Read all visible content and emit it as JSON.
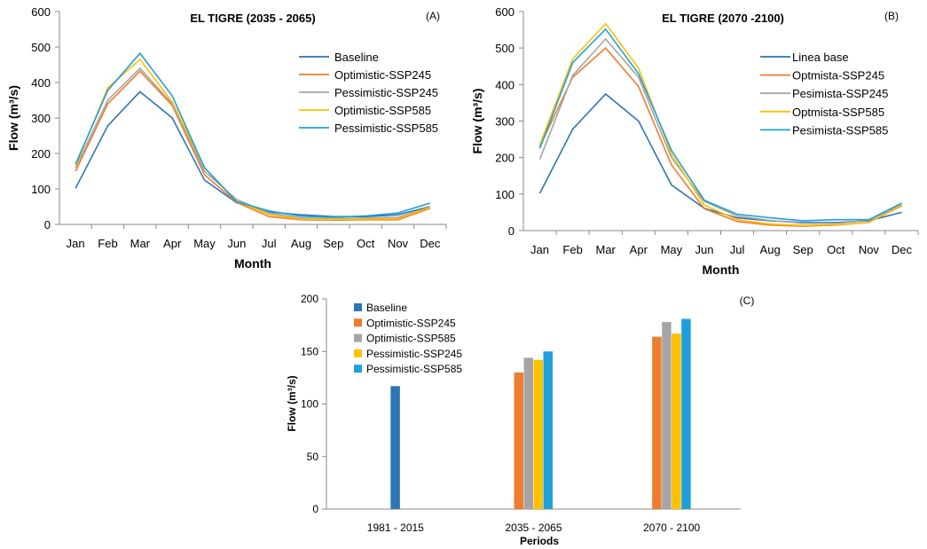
{
  "chart_data": [
    {
      "type": "line",
      "panel_label": "(A)",
      "title": "EL TIGRE  (2035 - 2065)",
      "xlabel": "Month",
      "ylabel": "Flow (m³/s)",
      "ylim": [
        0,
        600
      ],
      "yticks": [
        "0",
        "100",
        "200",
        "300",
        "400",
        "500",
        "600"
      ],
      "categories": [
        "Jan",
        "Feb",
        "Mar",
        "Apr",
        "May",
        "Jun",
        "Jul",
        "Aug",
        "Sep",
        "Oct",
        "Nov",
        "Dec"
      ],
      "legend_position": "top-right",
      "series": [
        {
          "name": "Baseline",
          "color": "#2e75b6",
          "values": [
            102,
            278,
            374,
            300,
            125,
            61,
            35,
            27,
            22,
            22,
            27,
            50
          ]
        },
        {
          "name": "Optimistic-SSP245",
          "color": "#ed7d31",
          "values": [
            150,
            340,
            432,
            335,
            140,
            62,
            22,
            13,
            12,
            13,
            13,
            45
          ]
        },
        {
          "name": "Pessimistic-SSP245",
          "color": "#a5a5a5",
          "values": [
            160,
            350,
            440,
            340,
            150,
            70,
            32,
            18,
            16,
            18,
            20,
            48
          ]
        },
        {
          "name": "Optimistic-SSP585",
          "color": "#ffc000",
          "values": [
            165,
            385,
            465,
            345,
            160,
            65,
            28,
            15,
            14,
            15,
            16,
            48
          ]
        },
        {
          "name": "Pessimistic-SSP585",
          "color": "#1fa0db",
          "values": [
            170,
            378,
            482,
            362,
            160,
            64,
            38,
            23,
            20,
            24,
            32,
            60
          ]
        }
      ]
    },
    {
      "type": "line",
      "panel_label": "(B)",
      "title": "EL TIGRE (2070 -2100)",
      "xlabel": "Month",
      "ylabel": "Flow (m³/s)",
      "ylim": [
        0,
        600
      ],
      "yticks": [
        "0",
        "100",
        "200",
        "300",
        "400",
        "500",
        "600"
      ],
      "categories": [
        "Jan",
        "Feb",
        "Mar",
        "Apr",
        "May",
        "Jun",
        "Jul",
        "Aug",
        "Sep",
        "Oct",
        "Nov",
        "Dec"
      ],
      "legend_position": "top-right",
      "series": [
        {
          "name": "Linea base",
          "color": "#2e75b6",
          "values": [
            102,
            278,
            374,
            300,
            125,
            61,
            35,
            27,
            22,
            22,
            27,
            50
          ]
        },
        {
          "name": "Optmista-SSP245",
          "color": "#ed7d31",
          "values": [
            230,
            420,
            500,
            395,
            180,
            60,
            25,
            15,
            12,
            15,
            22,
            68
          ]
        },
        {
          "name": "Pesimista-SSP245",
          "color": "#a5a5a5",
          "values": [
            195,
            425,
            525,
            420,
            200,
            80,
            40,
            28,
            20,
            20,
            28,
            72
          ]
        },
        {
          "name": "Optmista-SSP585",
          "color": "#ffc000",
          "values": [
            235,
            470,
            567,
            445,
            210,
            70,
            30,
            18,
            14,
            16,
            22,
            70
          ]
        },
        {
          "name": "Pesimista-SSP585",
          "color": "#1fa0db",
          "values": [
            225,
            460,
            552,
            430,
            220,
            83,
            45,
            35,
            27,
            30,
            30,
            75
          ]
        }
      ]
    },
    {
      "type": "bar",
      "panel_label": "(C)",
      "xlabel": "Periods",
      "ylabel": "Flow (m³/s)",
      "ylim": [
        0,
        200
      ],
      "yticks": [
        "0",
        "50",
        "100",
        "150",
        "200"
      ],
      "categories": [
        "1981 - 2015",
        "2035 - 2065",
        "2070 - 2100"
      ],
      "legend_position": "top-left",
      "series": [
        {
          "name": "Baseline",
          "color": "#2e75b6",
          "values": [
            117,
            null,
            null
          ]
        },
        {
          "name": "Optimistic-SSP245",
          "color": "#ed7d31",
          "values": [
            null,
            130,
            164
          ]
        },
        {
          "name": "Optimistic-SSP585",
          "color": "#a5a5a5",
          "values": [
            null,
            144,
            178
          ]
        },
        {
          "name": "Pessimistic-SSP245",
          "color": "#ffc000",
          "values": [
            null,
            142,
            167
          ]
        },
        {
          "name": "Pessimistic-SSP585",
          "color": "#1fa0db",
          "values": [
            null,
            150,
            181
          ]
        }
      ]
    }
  ]
}
